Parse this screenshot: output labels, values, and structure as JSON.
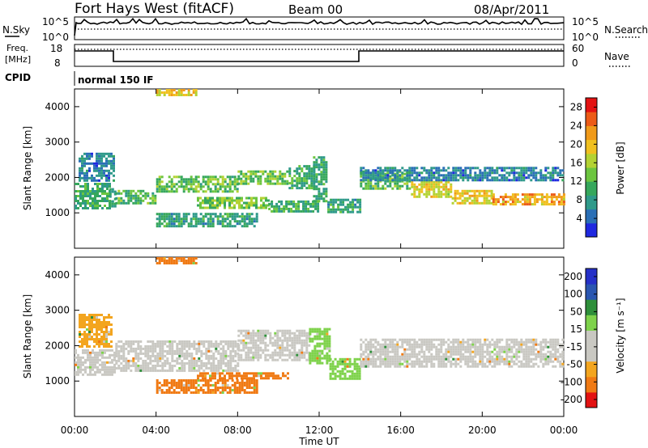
{
  "header": {
    "station": "Fort Hays West (fitACF)",
    "beam": "Beam 00",
    "date": "08/Apr/2011"
  },
  "noise_panel": {
    "left_label": "N.Sky",
    "right_label": "N.Search",
    "left_ticks": [
      "10^5",
      "10^0"
    ],
    "right_ticks": [
      "10^5",
      "10^0"
    ]
  },
  "freq_panel": {
    "left_label_line1": "Freq.",
    "left_label_line2": "[MHz]",
    "left_ticks": [
      "18",
      "8"
    ],
    "right_label": "Nave",
    "right_ticks": [
      "60",
      "0"
    ]
  },
  "cpid": {
    "label": "CPID",
    "value": "normal 150 IF"
  },
  "colors": {
    "power_scale": [
      "#1f28e0",
      "#2a6fb6",
      "#2f9a8a",
      "#36a75c",
      "#6cc53f",
      "#b3d233",
      "#f0c020",
      "#f09a1a",
      "#ec5b17",
      "#e31212"
    ],
    "velocity_scale": [
      "#e31212",
      "#f07a14",
      "#f3a51f",
      "#c9c8c2",
      "#c9c8c2",
      "#7ed24b",
      "#2e8f3a",
      "#2a56b0",
      "#2530c8"
    ]
  },
  "chart_data": [
    {
      "type": "heatmap",
      "name": "power",
      "ylabel": "Slant Range [km]",
      "ylim": [
        0,
        4500
      ],
      "yticks": [
        "1000",
        "2000",
        "3000",
        "4000"
      ],
      "xlim_hours": [
        0,
        24
      ],
      "colorbar_label": "Power [dB]",
      "colorbar_ticks": [
        "4",
        "8",
        "12",
        "16",
        "20",
        "24",
        "28"
      ],
      "colorbar_range": [
        0,
        30
      ],
      "bands": [
        {
          "t0": 0.0,
          "t1": 1.7,
          "r0": 1150,
          "r1": 1850,
          "level": 10
        },
        {
          "t0": 1.7,
          "t1": 2.0,
          "r0": 1200,
          "r1": 1700,
          "level": 8
        },
        {
          "t0": 2.0,
          "t1": 4.0,
          "r0": 1300,
          "r1": 1650,
          "level": 11
        },
        {
          "t0": 4.0,
          "t1": 8.0,
          "r0": 1600,
          "r1": 2050,
          "level": 12
        },
        {
          "t0": 8.0,
          "t1": 10.5,
          "r0": 1800,
          "r1": 2200,
          "level": 13
        },
        {
          "t0": 10.5,
          "t1": 11.7,
          "r0": 1700,
          "r1": 2350,
          "level": 10
        },
        {
          "t0": 11.7,
          "t1": 12.4,
          "r0": 1300,
          "r1": 2600,
          "level": 9
        },
        {
          "t0": 12.4,
          "t1": 14.0,
          "r0": 1000,
          "r1": 1400,
          "level": 8
        },
        {
          "t0": 14.0,
          "t1": 16.5,
          "r0": 1700,
          "r1": 2200,
          "level": 12
        },
        {
          "t0": 16.5,
          "t1": 18.5,
          "r0": 1450,
          "r1": 1900,
          "level": 18
        },
        {
          "t0": 18.5,
          "t1": 20.5,
          "r0": 1250,
          "r1": 1650,
          "level": 19
        },
        {
          "t0": 20.5,
          "t1": 24.0,
          "r0": 1250,
          "r1": 1550,
          "level": 22
        },
        {
          "t0": 4.0,
          "t1": 9.0,
          "r0": 620,
          "r1": 1000,
          "level": 8
        },
        {
          "t0": 6.0,
          "t1": 9.5,
          "r0": 1150,
          "r1": 1450,
          "level": 13
        },
        {
          "t0": 9.5,
          "t1": 12.0,
          "r0": 1050,
          "r1": 1350,
          "level": 10
        },
        {
          "t0": 4.0,
          "t1": 6.0,
          "r0": 4350,
          "r1": 4500,
          "level": 20
        },
        {
          "t0": 0.2,
          "t1": 1.9,
          "r0": 1900,
          "r1": 2700,
          "level": 5
        },
        {
          "t0": 14.0,
          "t1": 24.0,
          "r0": 1900,
          "r1": 2300,
          "level": 5
        }
      ]
    },
    {
      "type": "heatmap",
      "name": "velocity",
      "ylabel": "Slant Range [km]",
      "ylim": [
        0,
        4500
      ],
      "yticks": [
        "1000",
        "2000",
        "3000",
        "4000"
      ],
      "xlim_hours": [
        0,
        24
      ],
      "xticks": [
        "00:00",
        "04:00",
        "08:00",
        "12:00",
        "16:00",
        "20:00",
        "00:00"
      ],
      "xlabel": "Time UT",
      "colorbar_label": "Velocity [m s⁻¹]",
      "colorbar_ticks": [
        "200",
        "100",
        "50",
        "15",
        "-15",
        "-50",
        "-100",
        "-200"
      ],
      "bands": [
        {
          "t0": 0.0,
          "t1": 2.0,
          "r0": 1200,
          "r1": 1900,
          "level": 0
        },
        {
          "t0": 2.0,
          "t1": 8.0,
          "r0": 1300,
          "r1": 2150,
          "level": 0
        },
        {
          "t0": 8.0,
          "t1": 11.5,
          "r0": 1600,
          "r1": 2450,
          "level": 0
        },
        {
          "t0": 11.5,
          "t1": 12.5,
          "r0": 1500,
          "r1": 2500,
          "level": 25
        },
        {
          "t0": 12.5,
          "t1": 14.0,
          "r0": 1050,
          "r1": 1650,
          "level": 30
        },
        {
          "t0": 14.0,
          "t1": 24.0,
          "r0": 1400,
          "r1": 2200,
          "level": 0
        },
        {
          "t0": 0.2,
          "t1": 1.8,
          "r0": 2000,
          "r1": 2900,
          "level": -25
        },
        {
          "t0": 4.0,
          "t1": 9.0,
          "r0": 700,
          "r1": 1050,
          "level": -40
        },
        {
          "t0": 6.0,
          "t1": 10.5,
          "r0": 1100,
          "r1": 1250,
          "level": -40
        },
        {
          "t0": 4.0,
          "t1": 6.0,
          "r0": 4350,
          "r1": 4500,
          "level": -45
        }
      ]
    }
  ]
}
